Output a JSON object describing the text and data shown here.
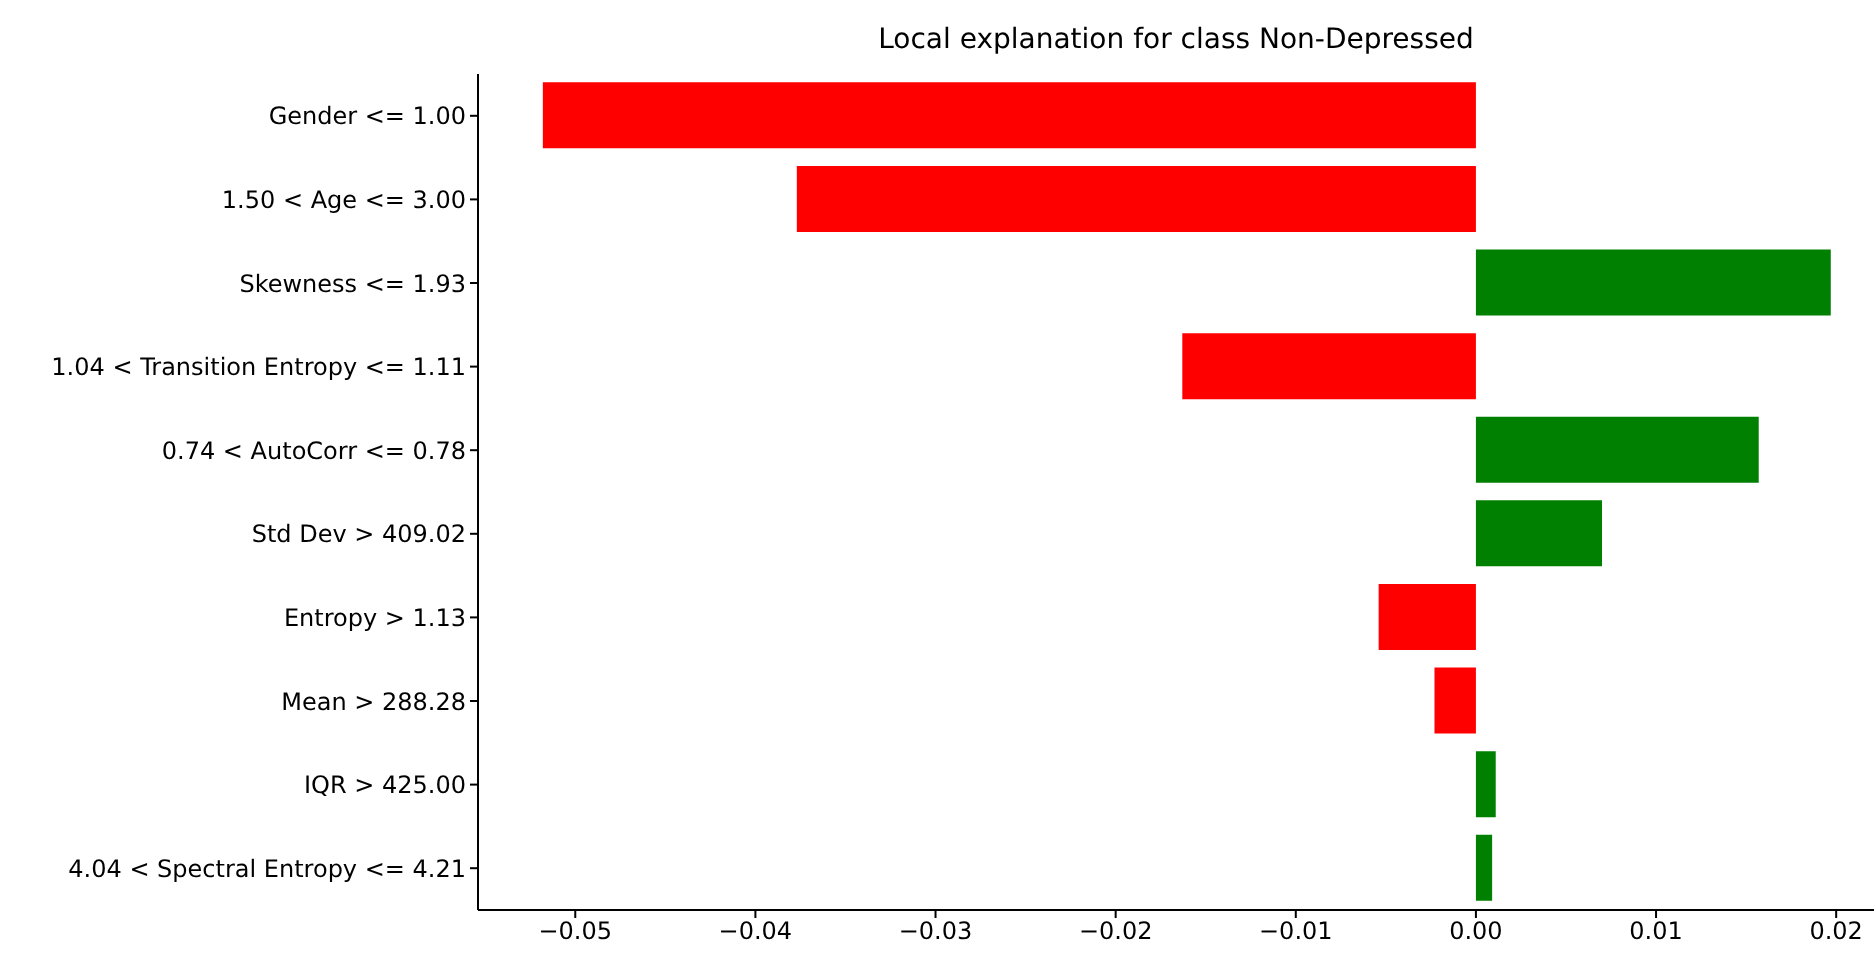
{
  "chart_data": {
    "type": "bar",
    "orientation": "horizontal",
    "title": "Local explanation for class Non-Depressed",
    "categories": [
      "Gender <= 1.00",
      "1.50 < Age <= 3.00",
      "Skewness <= 1.93",
      "1.04 < Transition Entropy <= 1.11",
      "0.74 < AutoCorr <= 0.78",
      "Std Dev > 409.02",
      "Entropy > 1.13",
      "Mean > 288.28",
      "IQR > 425.00",
      "4.04 < Spectral Entropy <= 4.21"
    ],
    "values": [
      -0.0518,
      -0.0377,
      0.0197,
      -0.0163,
      0.0157,
      0.007,
      -0.0054,
      -0.0023,
      0.0011,
      0.0009
    ],
    "colors": [
      "#ff0000",
      "#ff0000",
      "#008000",
      "#ff0000",
      "#008000",
      "#008000",
      "#ff0000",
      "#ff0000",
      "#008000",
      "#008000"
    ],
    "xlim": [
      -0.0554,
      0.0221
    ],
    "xticks": [
      {
        "value": -0.05,
        "label": "−0.05"
      },
      {
        "value": -0.04,
        "label": "−0.04"
      },
      {
        "value": -0.03,
        "label": "−0.03"
      },
      {
        "value": -0.02,
        "label": "−0.02"
      },
      {
        "value": -0.01,
        "label": "−0.01"
      },
      {
        "value": 0,
        "label": "0.00"
      },
      {
        "value": 0.01,
        "label": "0.01"
      },
      {
        "value": 0.02,
        "label": "0.02"
      }
    ],
    "grid": false,
    "legend": false
  }
}
